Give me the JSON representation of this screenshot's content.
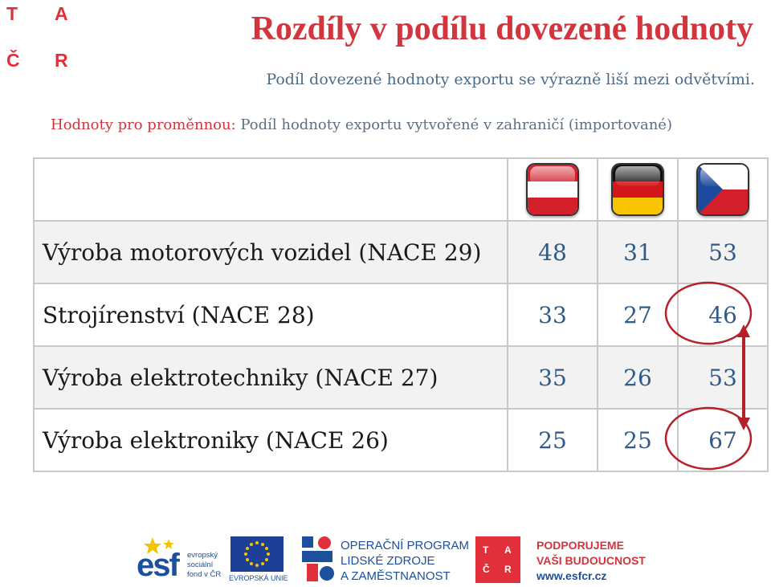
{
  "logo": {
    "letters": [
      "T",
      "A",
      "Č",
      "R"
    ]
  },
  "title": "Rozdíly v podílu dovezené hodnoty",
  "subtitle": "Podíl dovezené hodnoty exportu se výrazně liší mezi odvětvími.",
  "variable": {
    "label": "Hodnoty pro proměnnou:",
    "text": " Podíl hodnoty exportu vytvořené v zahraničí (importované)"
  },
  "columns": [
    {
      "flag": "austria-flag-icon",
      "colors": [
        "#d21f2b",
        "#ffffff",
        "#d21f2b"
      ]
    },
    {
      "flag": "germany-flag-icon",
      "colors": [
        "#111111",
        "#d2161b",
        "#f8c400"
      ]
    },
    {
      "flag": "czech-flag-icon",
      "colors": [
        "#ffffff",
        "#d21f2b",
        "#1c4a9c"
      ]
    }
  ],
  "rows": [
    {
      "name": "Výroba motorových vozidel (NACE 29)",
      "values": [
        "48",
        "31",
        "53"
      ]
    },
    {
      "name": "Strojírenství (NACE 28)",
      "values": [
        "33",
        "27",
        "46"
      ]
    },
    {
      "name": "Výroba elektrotechniky (NACE 27)",
      "values": [
        "35",
        "26",
        "53"
      ]
    },
    {
      "name": "Výroba elektroniky (NACE 26)",
      "values": [
        "25",
        "25",
        "67"
      ]
    }
  ],
  "highlight": {
    "color": "#b5202b",
    "circled_values": [
      "46",
      "67"
    ],
    "arrow_icon": "double-arrow-icon"
  },
  "footer": {
    "esf": {
      "mark": "esf",
      "lines": [
        "evropský",
        "sociální",
        "fond v ČR"
      ]
    },
    "eu_caption": "EVROPSKÁ UNIE",
    "op_lines": [
      "OPERAČNÍ PROGRAM",
      "LIDSKÉ ZDROJE",
      "A ZAMĚSTNANOST"
    ],
    "tacr_letters": [
      "T",
      "A",
      "Č",
      "R"
    ],
    "support_lines": [
      "PODPORUJEME",
      "VAŠI BUDOUCNOST"
    ],
    "support_url": "www.esfcr.cz"
  },
  "colors": {
    "accent": "#d1353d",
    "blue": "#2f5b86",
    "brand_blue": "#1c4f9c"
  }
}
